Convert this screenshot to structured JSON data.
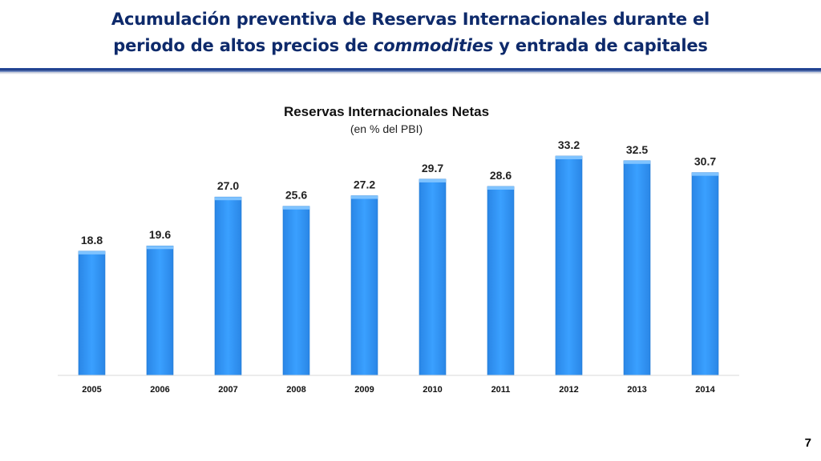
{
  "slide": {
    "title_line1": "Acumulación preventiva de Reservas Internacionales durante el",
    "title_line2_pre": "periodo de altos precios de ",
    "title_line2_em": "commodities",
    "title_line2_post": " y entrada de capitales",
    "page_number": "7"
  },
  "colors": {
    "title": "#0e2a6b",
    "bar": "#3399ff",
    "bar_top": "#7fc3ff",
    "bar_edge": "#1f78d1",
    "rule": "#1b3a86"
  },
  "chart_data": {
    "type": "bar",
    "title": "Reservas Internacionales Netas",
    "subtitle": "(en % del PBI)",
    "categories": [
      "2005",
      "2006",
      "2007",
      "2008",
      "2009",
      "2010",
      "2011",
      "2012",
      "2013",
      "2014"
    ],
    "values": [
      18.8,
      19.6,
      27.0,
      25.6,
      27.2,
      29.7,
      28.6,
      33.2,
      32.5,
      30.7
    ],
    "value_labels": [
      "18.8",
      "19.6",
      "27.0",
      "25.6",
      "27.2",
      "29.7",
      "28.6",
      "33.2",
      "32.5",
      "30.7"
    ],
    "xlabel": "",
    "ylabel": "",
    "ylim": [
      0,
      35
    ],
    "grid": false,
    "legend": "none"
  }
}
